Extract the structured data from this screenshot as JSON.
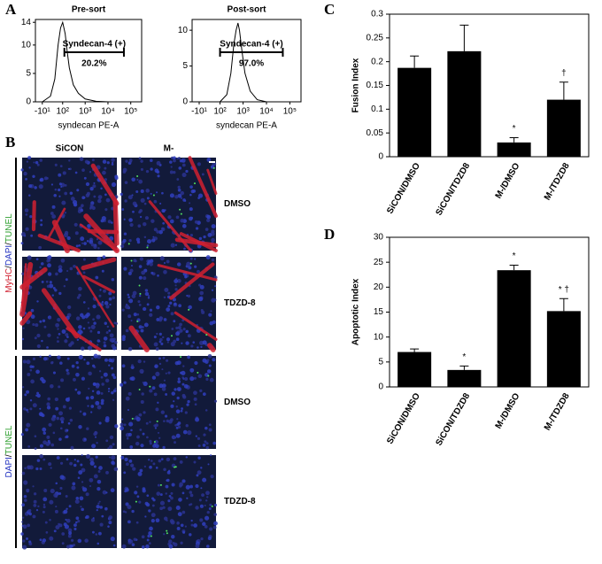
{
  "chart_data": [
    {
      "type": "histogram_line",
      "panel": "A",
      "title": "Pre-sort",
      "xlabel": "syndecan PE-A",
      "xscale": "biexponential",
      "x": [
        -10,
        20,
        40,
        60,
        80,
        100,
        130,
        160,
        200,
        300,
        500,
        1000,
        3000,
        10000
      ],
      "values": [
        0,
        1,
        4,
        10,
        13,
        14,
        12,
        9,
        6,
        3,
        1.5,
        0.5,
        0.1,
        0
      ],
      "xlim": [
        -40,
        300000
      ],
      "ylim": [
        0,
        14.5
      ],
      "xticks": [
        {
          "value": -10,
          "label": "-10¹"
        },
        {
          "value": 100,
          "label": "10²"
        },
        {
          "value": 1000,
          "label": "10³"
        },
        {
          "value": 10000,
          "label": "10⁴"
        },
        {
          "value": 100000,
          "label": "10⁵"
        }
      ],
      "yticks": [
        0,
        5,
        10,
        14
      ],
      "gate": [
        120,
        50000
      ],
      "gate_label": "Syndecan-4 (+)",
      "gate_percent": "20.2%",
      "color": "#000000"
    },
    {
      "type": "histogram_line",
      "title": "Post-sort",
      "xlabel": "syndecan PE-A",
      "xscale": "biexponential",
      "x": [
        100,
        200,
        300,
        400,
        500,
        600,
        700,
        900,
        1200,
        2000,
        4000,
        10000
      ],
      "values": [
        0,
        1,
        4,
        8,
        10,
        11,
        10,
        7,
        4,
        1.5,
        0.3,
        0
      ],
      "xlim": [
        -40,
        300000
      ],
      "ylim": [
        0,
        11.5
      ],
      "xticks": [
        {
          "value": -10,
          "label": "-10¹"
        },
        {
          "value": 100,
          "label": "10²"
        },
        {
          "value": 1000,
          "label": "10³"
        },
        {
          "value": 10000,
          "label": "10⁴"
        },
        {
          "value": 100000,
          "label": "10⁵"
        }
      ],
      "yticks": [
        0,
        5,
        10
      ],
      "gate": [
        100,
        50000
      ],
      "gate_label": "Syndecan-4 (+)",
      "gate_percent": "97.0%",
      "color": "#000000"
    },
    {
      "type": "bar",
      "panel": "C",
      "ylabel": "Fusion Index",
      "categories": [
        "SiCON/DMSO",
        "SiCON/TDZD8",
        "M-/DMSO",
        "M-/TDZD8"
      ],
      "values": [
        0.187,
        0.222,
        0.03,
        0.12
      ],
      "errors": [
        0.025,
        0.055,
        0.01,
        0.037
      ],
      "markers": [
        null,
        null,
        "*",
        "†"
      ],
      "color": "#000000",
      "ylim": [
        0,
        0.3
      ],
      "yticks": [
        0,
        0.05,
        0.1,
        0.15,
        0.2,
        0.25,
        0.3
      ]
    },
    {
      "type": "bar",
      "panel": "D",
      "ylabel": "Apoptotic Index",
      "categories": [
        "SiCON/DMSO",
        "SiCON/TDZD8",
        "M-/DMSO",
        "M-/TDZD8"
      ],
      "values": [
        7.0,
        3.4,
        23.4,
        15.2
      ],
      "errors": [
        0.6,
        0.8,
        1.0,
        2.5
      ],
      "markers": [
        null,
        "*",
        "*",
        "* †"
      ],
      "color": "#000000",
      "ylim": [
        0,
        30
      ],
      "yticks": [
        0,
        5,
        10,
        15,
        20,
        25,
        30
      ]
    }
  ],
  "micrographs": {
    "panel": "B",
    "columns": [
      "SiCON",
      "M-"
    ],
    "rows": [
      "DMSO",
      "TDZD-8",
      "DMSO",
      "TDZD-8"
    ],
    "stain_labels": [
      [
        "MyHC",
        "/",
        "DAPI",
        "/",
        "TUNEL"
      ],
      [
        "DAPI",
        "/",
        "TUNEL"
      ]
    ]
  }
}
